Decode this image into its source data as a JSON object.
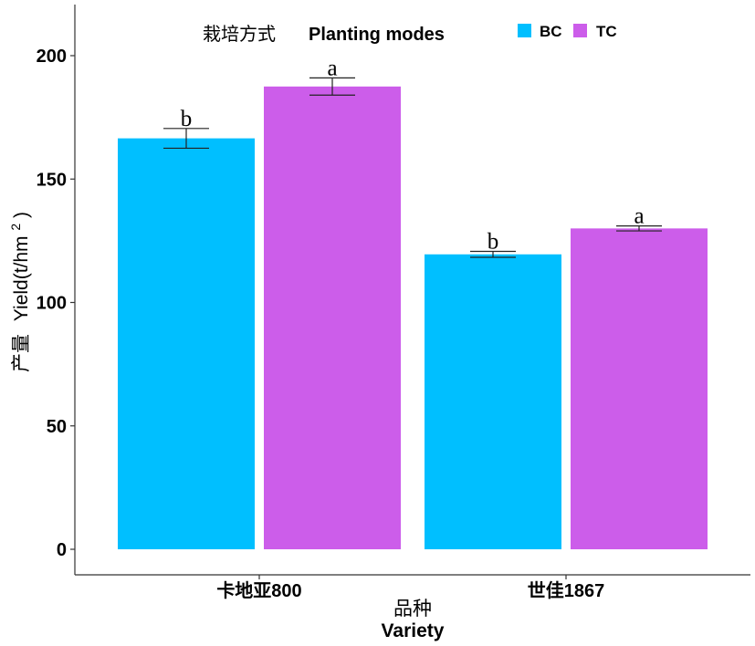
{
  "chart_data": {
    "type": "bar",
    "categories": [
      "卡地亚800",
      "世佳1867"
    ],
    "series": [
      {
        "name": "BC",
        "color": "#00BFFF",
        "values": [
          166.5,
          119.5
        ],
        "errors": [
          4.0,
          1.2
        ],
        "labels": [
          "b",
          "b"
        ]
      },
      {
        "name": "TC",
        "color": "#CC5DEA",
        "values": [
          187.5,
          130.0
        ],
        "errors": [
          3.5,
          1.0
        ],
        "labels": [
          "a",
          "a"
        ]
      }
    ],
    "legend": {
      "title_cn": "栽培方式",
      "title_en": "Planting modes",
      "placement": "top"
    },
    "xlabel_cn": "品种",
    "xlabel_en": "Variety",
    "ylabel_cn": "产量",
    "ylabel_en": "Yield(t/hm",
    "ylabel_sup": "2",
    "ylabel_close": ")",
    "ylim": [
      0,
      220
    ],
    "yticks": [
      0,
      50,
      100,
      150,
      200
    ],
    "grid": false
  }
}
